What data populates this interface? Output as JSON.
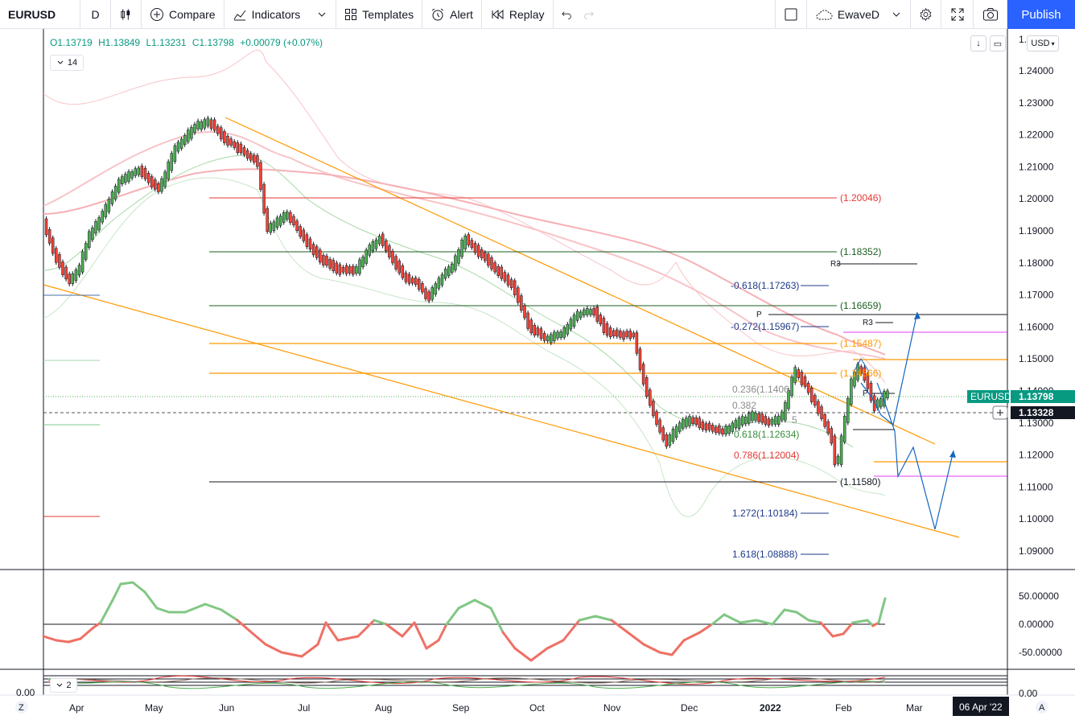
{
  "toolbar": {
    "symbol": "EURUSD",
    "interval": "D",
    "compare": "Compare",
    "indicators": "Indicators",
    "templates": "Templates",
    "alert": "Alert",
    "replay": "Replay",
    "layout_name": "EwaveD",
    "publish": "Publish"
  },
  "legend": {
    "open": "O1.13719",
    "high": "H1.13849",
    "low": "L1.13231",
    "close": "C1.13798",
    "change": "+0.00079 (+0.07%)",
    "length": "14",
    "pane2_length": "2"
  },
  "price_scale": {
    "currency": "USD",
    "labels": [
      "1.24000",
      "1.23000",
      "1.22000",
      "1.21000",
      "1.20000",
      "1.19000",
      "1.18000",
      "1.17000",
      "1.16000",
      "1.15000",
      "1.14000",
      "1.13000",
      "1.12000",
      "1.11000",
      "1.10000",
      "1.09000"
    ],
    "top_partial": "1.",
    "last_tag_symbol": "EURUSD",
    "last_tag_price": "1.13798",
    "cross_price": "1.13328",
    "osc_labels": [
      "50.00000",
      "0.00000",
      "-50.00000"
    ],
    "pane3_label": "0.00",
    "left_pane_label": "0.00"
  },
  "time_axis": {
    "labels": [
      "Apr",
      "May",
      "Jun",
      "Jul",
      "Aug",
      "Sep",
      "Oct",
      "Nov",
      "Dec",
      "2022",
      "Feb",
      "Mar"
    ],
    "cursor_date": "06 Apr '22",
    "left_btn": "Z",
    "right_btn": "A"
  },
  "levels": {
    "h1": "(1.20046)",
    "h2": "(1.18352)",
    "h3": "(1.16659)",
    "h4": "(1.15487)",
    "h5": "(1.14566)",
    "h6": "(1.11580)",
    "fib_m618": "-0.618(1.17263)",
    "fib_m272": "-0.272(1.15967)",
    "fib_236": "0.236(1.1406",
    "fib_382": "0.382",
    "fib_618": "0.618(1.12634)",
    "fib_786": "0.786(1.12004)",
    "fib_1272": "1.272(1.10184)",
    "fib_1618": "1.618(1.08888)",
    "r3a": "R3",
    "r3b": "R3",
    "p1": "P",
    "p2": "P",
    "s_small": "5"
  },
  "colors": {
    "up": "#089981",
    "down": "#f23645",
    "candle_up": "#4caf50",
    "candle_down": "#f44336",
    "trend": "#ff9800",
    "brand": "#2962ff"
  }
}
